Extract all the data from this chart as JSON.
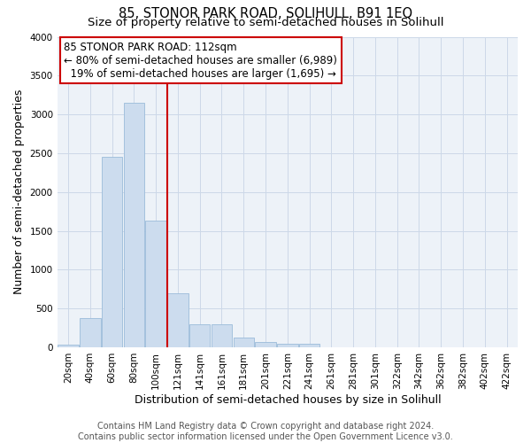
{
  "title": "85, STONOR PARK ROAD, SOLIHULL, B91 1EQ",
  "subtitle": "Size of property relative to semi-detached houses in Solihull",
  "xlabel": "Distribution of semi-detached houses by size in Solihull",
  "ylabel": "Number of semi-detached properties",
  "footer_line1": "Contains HM Land Registry data © Crown copyright and database right 2024.",
  "footer_line2": "Contains public sector information licensed under the Open Government Licence v3.0.",
  "bar_labels": [
    "20sqm",
    "40sqm",
    "60sqm",
    "80sqm",
    "100sqm",
    "121sqm",
    "141sqm",
    "161sqm",
    "181sqm",
    "201sqm",
    "221sqm",
    "241sqm",
    "261sqm",
    "281sqm",
    "301sqm",
    "322sqm",
    "342sqm",
    "362sqm",
    "382sqm",
    "402sqm",
    "422sqm"
  ],
  "bar_values": [
    30,
    375,
    2450,
    3150,
    1630,
    700,
    300,
    295,
    130,
    70,
    50,
    45,
    5,
    3,
    2,
    2,
    1,
    1,
    1,
    1,
    0
  ],
  "bar_color": "#ccdcee",
  "bar_edgecolor": "#9bbcda",
  "property_label": "85 STONOR PARK ROAD: 112sqm",
  "pct_smaller": 80,
  "n_smaller": 6989,
  "pct_larger": 19,
  "n_larger": 1695,
  "vline_color": "#cc0000",
  "annotation_box_color": "#cc0000",
  "ylim": [
    0,
    4000
  ],
  "grid_color": "#ccd8e8",
  "background_color": "#edf2f8",
  "title_fontsize": 10.5,
  "subtitle_fontsize": 9.5,
  "axis_label_fontsize": 9,
  "tick_fontsize": 7.5,
  "annotation_fontsize": 8.5,
  "footer_fontsize": 7
}
